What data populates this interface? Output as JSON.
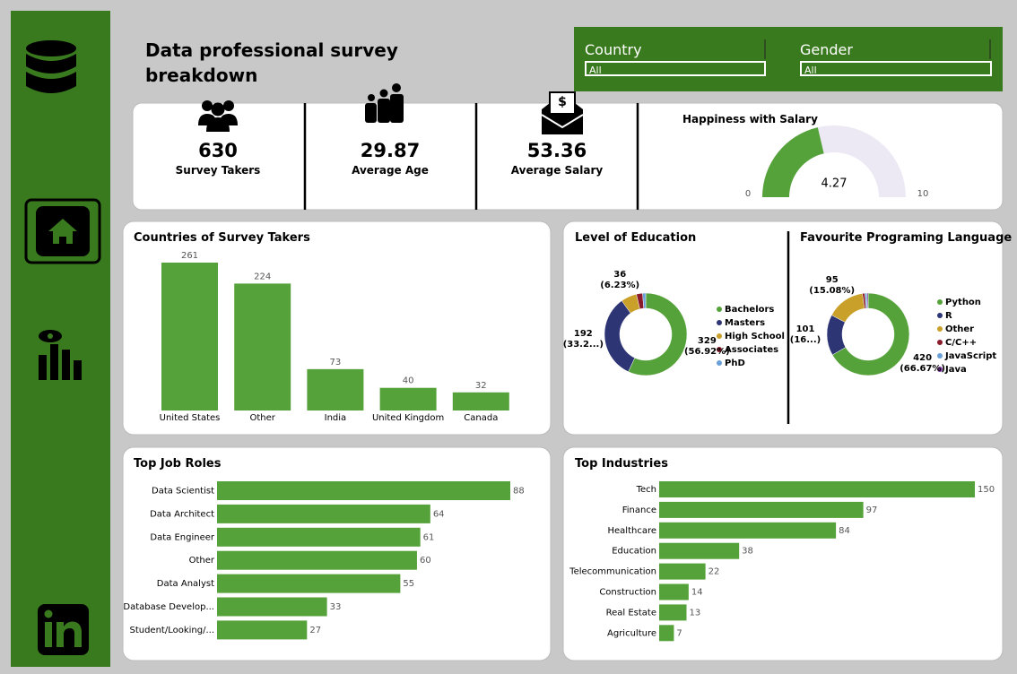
{
  "header": {
    "title": "Data professional survey breakdown"
  },
  "filters": [
    {
      "label": "Country",
      "value": "All"
    },
    {
      "label": "Gender",
      "value": "All"
    }
  ],
  "kpis": [
    {
      "value": 630,
      "label": "Survey Takers"
    },
    {
      "value": 29.87,
      "label": "Average Age"
    },
    {
      "value": 53.36,
      "label": "Average Salary"
    }
  ],
  "chart_data": [
    {
      "type": "gauge",
      "title": "Happiness with Salary",
      "value": 4.27,
      "ylim": [
        0,
        10
      ],
      "yticks": [
        0,
        10
      ],
      "color": "#56a23a",
      "track_color": "#ece9f5"
    },
    {
      "type": "bar",
      "title": "Countries of Survey Takers",
      "categories": [
        "United States",
        "Other",
        "India",
        "United Kingdom",
        "Canada"
      ],
      "values": [
        261,
        224,
        73,
        40,
        32
      ],
      "color": "#56a23a"
    },
    {
      "type": "donut",
      "title": "Level of Education",
      "categories": [
        "Bachelors",
        "Masters",
        "High School",
        "Associates",
        "PhD"
      ],
      "values": [
        329,
        192,
        36,
        14,
        7
      ],
      "value_labels": [
        "329 (56.92%)",
        "192 (33.2...)",
        "36 (6.23%)",
        null,
        null
      ],
      "colors": [
        "#56a23a",
        "#2e3575",
        "#c9a02a",
        "#8b1a2a",
        "#6aa0d8"
      ]
    },
    {
      "type": "donut",
      "title": "Favourite Programing Language",
      "categories": [
        "Python",
        "R",
        "Other",
        "C/C++",
        "JavaScript",
        "Java"
      ],
      "values": [
        420,
        101,
        95,
        6,
        5,
        3
      ],
      "value_labels": [
        "420 (66.67%)",
        "101 (16...)",
        "95 (15.08%)",
        null,
        null,
        null
      ],
      "colors": [
        "#56a23a",
        "#2e3575",
        "#c9a02a",
        "#8b1a2a",
        "#6aa0d8",
        "#7a3a9a"
      ]
    },
    {
      "type": "hbar",
      "title": "Top Job Roles",
      "categories": [
        "Data Scientist",
        "Data Architect",
        "Data Engineer",
        "Other",
        "Data Analyst",
        "Database Develop...",
        "Student/Looking/..."
      ],
      "values": [
        88,
        64,
        61,
        60,
        55,
        33,
        27
      ],
      "color": "#56a23a"
    },
    {
      "type": "hbar",
      "title": "Top Industries",
      "categories": [
        "Tech",
        "Finance",
        "Healthcare",
        "Education",
        "Telecommunication",
        "Construction",
        "Real Estate",
        "Agriculture"
      ],
      "values": [
        150,
        97,
        84,
        38,
        22,
        14,
        13,
        7
      ],
      "color": "#56a23a"
    }
  ]
}
